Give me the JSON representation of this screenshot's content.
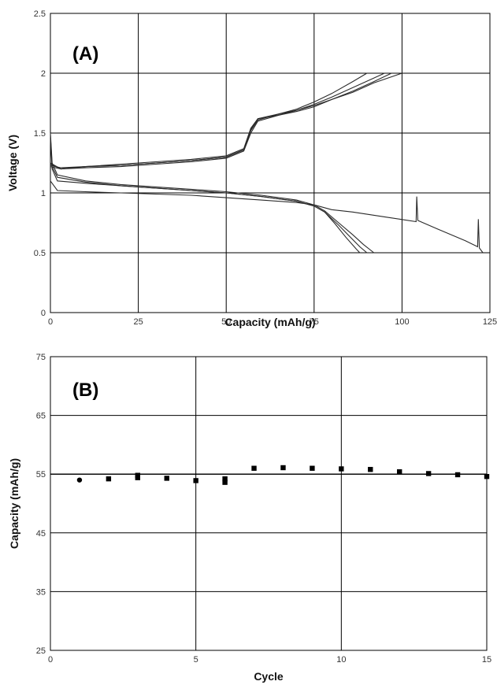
{
  "chart_data": [
    {
      "panel": "(A)",
      "type": "line",
      "xlabel": "Capacity (mAh/g)",
      "ylabel": "Voltage (V)",
      "xlim": [
        0,
        125
      ],
      "ylim": [
        0,
        2.5
      ],
      "xticks": [
        0,
        25,
        50,
        75,
        100,
        125
      ],
      "yticks": [
        0,
        0.5,
        1,
        1.5,
        2,
        2.5
      ],
      "grid": true,
      "series": [
        {
          "values": [
            [
              0,
              1.25
            ],
            [
              3,
              1.2
            ],
            [
              10,
              1.21
            ],
            [
              20,
              1.22
            ],
            [
              30,
              1.24
            ],
            [
              40,
              1.26
            ],
            [
              50,
              1.29
            ],
            [
              55,
              1.35
            ],
            [
              57,
              1.5
            ],
            [
              59,
              1.6
            ],
            [
              65,
              1.65
            ],
            [
              70,
              1.68
            ],
            [
              75,
              1.72
            ],
            [
              80,
              1.78
            ],
            [
              86,
              1.85
            ],
            [
              92,
              1.93
            ],
            [
              97,
              2.0
            ]
          ]
        },
        {
          "values": [
            [
              0,
              1.24
            ],
            [
              3,
              1.2
            ],
            [
              10,
              1.22
            ],
            [
              20,
              1.23
            ],
            [
              30,
              1.25
            ],
            [
              40,
              1.27
            ],
            [
              50,
              1.3
            ],
            [
              55,
              1.36
            ],
            [
              57,
              1.52
            ],
            [
              59,
              1.61
            ],
            [
              65,
              1.66
            ],
            [
              70,
              1.69
            ],
            [
              75,
              1.74
            ],
            [
              80,
              1.8
            ],
            [
              86,
              1.88
            ],
            [
              92,
              1.96
            ],
            [
              95,
              2.0
            ]
          ]
        },
        {
          "values": [
            [
              0,
              1.23
            ],
            [
              3,
              1.21
            ],
            [
              10,
              1.22
            ],
            [
              20,
              1.24
            ],
            [
              30,
              1.26
            ],
            [
              40,
              1.28
            ],
            [
              50,
              1.31
            ],
            [
              55,
              1.37
            ],
            [
              57,
              1.54
            ],
            [
              59,
              1.62
            ],
            [
              65,
              1.66
            ],
            [
              70,
              1.7
            ],
            [
              75,
              1.76
            ],
            [
              80,
              1.83
            ],
            [
              86,
              1.93
            ],
            [
              90,
              2.0
            ]
          ]
        },
        {
          "values": [
            [
              0,
              1.22
            ],
            [
              3,
              1.2
            ],
            [
              10,
              1.22
            ],
            [
              20,
              1.23
            ],
            [
              30,
              1.25
            ],
            [
              40,
              1.27
            ],
            [
              50,
              1.3
            ],
            [
              55,
              1.36
            ],
            [
              57,
              1.53
            ],
            [
              59,
              1.62
            ],
            [
              65,
              1.65
            ],
            [
              70,
              1.69
            ],
            [
              75,
              1.73
            ],
            [
              80,
              1.78
            ],
            [
              86,
              1.84
            ],
            [
              92,
              1.92
            ],
            [
              100,
              2.0
            ]
          ]
        },
        {
          "values": [
            [
              0,
              1.5
            ],
            [
              0.5,
              1.25
            ],
            [
              2,
              1.15
            ],
            [
              10,
              1.1
            ],
            [
              20,
              1.07
            ],
            [
              30,
              1.05
            ],
            [
              40,
              1.03
            ],
            [
              50,
              1.01
            ],
            [
              60,
              0.98
            ],
            [
              70,
              0.94
            ],
            [
              75,
              0.9
            ],
            [
              78,
              0.85
            ],
            [
              82,
              0.75
            ],
            [
              86,
              0.65
            ],
            [
              89,
              0.57
            ],
            [
              92,
              0.5
            ]
          ]
        },
        {
          "values": [
            [
              0,
              1.48
            ],
            [
              0.5,
              1.22
            ],
            [
              2,
              1.13
            ],
            [
              10,
              1.09
            ],
            [
              20,
              1.06
            ],
            [
              30,
              1.04
            ],
            [
              40,
              1.02
            ],
            [
              50,
              1.0
            ],
            [
              60,
              0.97
            ],
            [
              70,
              0.93
            ],
            [
              75,
              0.89
            ],
            [
              78,
              0.84
            ],
            [
              82,
              0.73
            ],
            [
              85,
              0.64
            ],
            [
              88,
              0.55
            ],
            [
              90,
              0.5
            ]
          ]
        },
        {
          "values": [
            [
              0,
              1.45
            ],
            [
              0.5,
              1.2
            ],
            [
              2,
              1.1
            ],
            [
              10,
              1.08
            ],
            [
              20,
              1.06
            ],
            [
              30,
              1.04
            ],
            [
              40,
              1.02
            ],
            [
              50,
              1.0
            ],
            [
              60,
              0.97
            ],
            [
              70,
              0.93
            ],
            [
              75,
              0.89
            ],
            [
              78,
              0.84
            ],
            [
              81,
              0.74
            ],
            [
              84,
              0.63
            ],
            [
              87,
              0.53
            ],
            [
              88,
              0.5
            ]
          ]
        },
        {
          "values": [
            [
              0,
              1.1
            ],
            [
              2,
              1.02
            ],
            [
              10,
              1.01
            ],
            [
              20,
              1.0
            ],
            [
              30,
              0.99
            ],
            [
              40,
              0.98
            ],
            [
              50,
              0.96
            ],
            [
              60,
              0.94
            ],
            [
              70,
              0.92
            ],
            [
              75,
              0.9
            ],
            [
              80,
              0.86
            ],
            [
              86,
              0.84
            ],
            [
              95,
              0.8
            ],
            [
              104,
              0.76
            ],
            [
              104.2,
              0.97
            ],
            [
              104.5,
              0.77
            ],
            [
              110,
              0.7
            ],
            [
              118,
              0.6
            ],
            [
              121.5,
              0.55
            ],
            [
              121.7,
              0.78
            ],
            [
              122,
              0.54
            ],
            [
              123,
              0.5
            ]
          ]
        }
      ]
    },
    {
      "panel": "(B)",
      "type": "scatter",
      "xlabel": "Cycle",
      "ylabel": "Capacity (mAh/g)",
      "xlim": [
        0,
        15
      ],
      "ylim": [
        25,
        75
      ],
      "xticks": [
        0,
        5,
        10,
        15
      ],
      "yticks": [
        25,
        35,
        45,
        55,
        65,
        75
      ],
      "grid": true,
      "reference_line": 55,
      "series": [
        {
          "marker": "circle",
          "x": [
            1
          ],
          "values": [
            54
          ]
        },
        {
          "marker": "square",
          "x": [
            2,
            3,
            3,
            4,
            5,
            6,
            6,
            7,
            8,
            9,
            10,
            11,
            12,
            13,
            14,
            15
          ],
          "values": [
            54.2,
            54.8,
            54.4,
            54.3,
            53.9,
            54.2,
            53.6,
            56.0,
            56.1,
            56.0,
            55.9,
            55.8,
            55.4,
            55.1,
            54.9,
            54.6
          ]
        }
      ]
    }
  ],
  "colors": {
    "line": "#2a2a2a",
    "grid": "#000000",
    "marker": "#000000"
  }
}
